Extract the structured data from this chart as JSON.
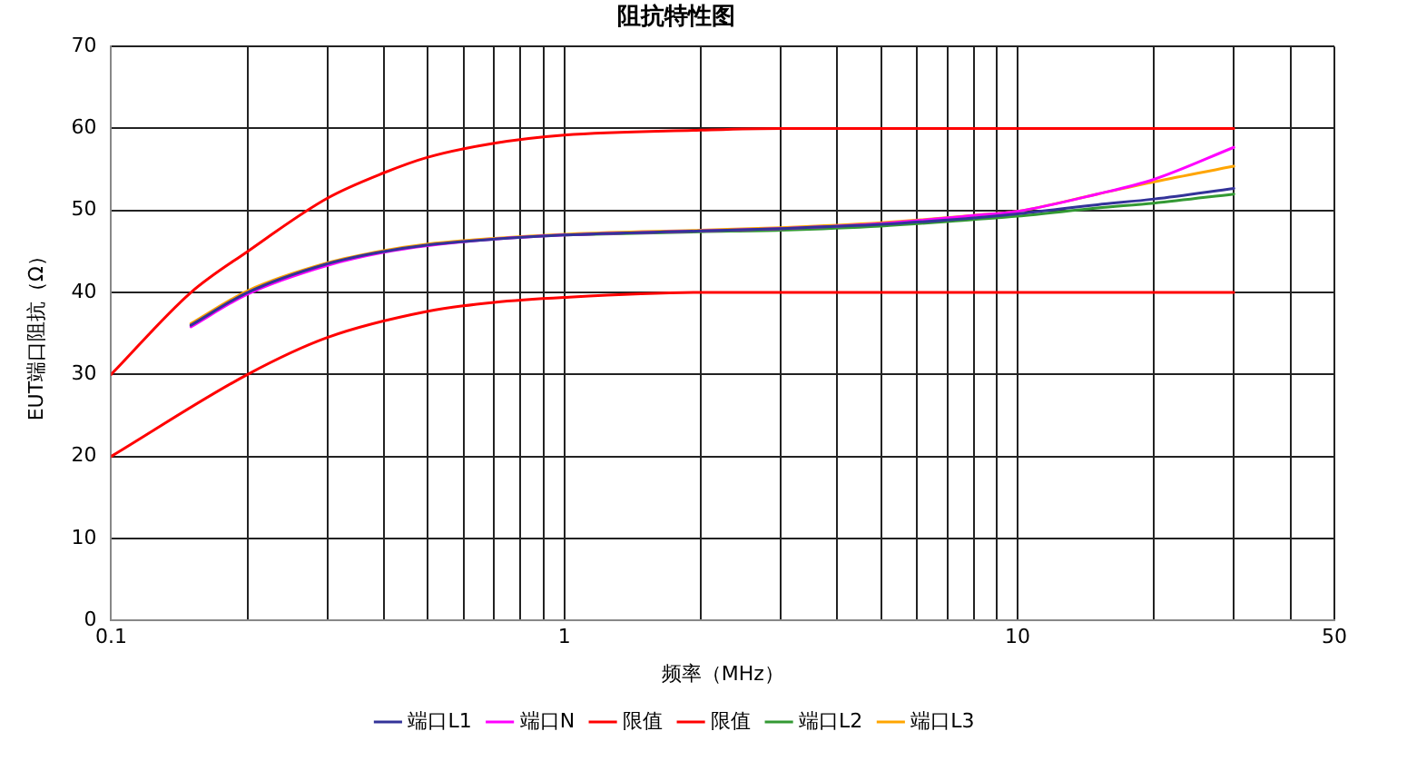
{
  "chart_data": {
    "type": "line",
    "title": "阻抗特性图",
    "xlabel": "频率（MHz）",
    "ylabel": "EUT端口阻抗（Ω）",
    "log": "x",
    "xlim": [
      0.1,
      50
    ],
    "xticks": [
      0.1,
      {
        "value": 0.2,
        "label": null
      },
      {
        "value": 0.3,
        "label": null
      },
      {
        "value": 0.4,
        "label": null
      },
      {
        "value": 0.5,
        "label": null
      },
      {
        "value": 0.6,
        "label": null
      },
      {
        "value": 0.7,
        "label": null
      },
      {
        "value": 0.8,
        "label": null
      },
      {
        "value": 0.9,
        "label": null
      },
      1,
      {
        "value": 2,
        "label": null
      },
      {
        "value": 3,
        "label": null
      },
      {
        "value": 4,
        "label": null
      },
      {
        "value": 5,
        "label": null
      },
      {
        "value": 6,
        "label": null
      },
      {
        "value": 7,
        "label": null
      },
      {
        "value": 8,
        "label": null
      },
      {
        "value": 9,
        "label": null
      },
      10,
      {
        "value": 20,
        "label": null
      },
      {
        "value": 30,
        "label": null
      },
      {
        "value": 40,
        "label": null
      },
      50
    ],
    "ylim": [
      0,
      70
    ],
    "yticks": [
      0,
      10,
      20,
      30,
      40,
      50,
      60,
      70
    ],
    "grid": true,
    "legend": "bottom",
    "marker": "none",
    "line_style": "solid",
    "series": [
      {
        "name": "端口L1",
        "color": "#333399",
        "x": [
          0.15,
          0.2,
          0.3,
          0.4,
          0.5,
          0.7,
          1,
          2,
          3,
          5,
          8,
          10,
          15,
          20,
          30
        ],
        "values": [
          36,
          40,
          43.5,
          45,
          45.8,
          46.5,
          47,
          47.5,
          47.8,
          48.3,
          49.1,
          49.6,
          50.7,
          51.4,
          52.7
        ]
      },
      {
        "name": "端口N",
        "color": "#ff00ff",
        "x": [
          0.15,
          0.2,
          0.3,
          0.4,
          0.5,
          0.7,
          1,
          2,
          3,
          5,
          8,
          10,
          15,
          20,
          30
        ],
        "values": [
          35.8,
          39.8,
          43.3,
          44.9,
          45.7,
          46.5,
          47,
          47.5,
          47.8,
          48.4,
          49.4,
          49.9,
          52,
          53.8,
          57.7
        ]
      },
      {
        "name": "限值",
        "color": "#ff0000",
        "x": [
          0.1,
          0.15,
          0.2,
          0.3,
          0.4,
          0.5,
          0.7,
          1,
          2,
          3,
          30
        ],
        "values": [
          30,
          40,
          45,
          51.5,
          54.6,
          56.5,
          58.2,
          59.2,
          59.8,
          60,
          60
        ]
      },
      {
        "name": "限值",
        "color": "#ff0000",
        "x": [
          0.1,
          0.2,
          0.3,
          0.5,
          0.7,
          1,
          2,
          30
        ],
        "values": [
          20,
          30,
          34.5,
          37.7,
          38.8,
          39.4,
          40,
          40
        ]
      },
      {
        "name": "端口L2",
        "color": "#339933",
        "x": [
          1,
          2,
          3,
          5,
          8,
          10,
          15,
          20,
          30
        ],
        "values": [
          47,
          47.4,
          47.6,
          48.1,
          48.9,
          49.3,
          50.3,
          50.9,
          52
        ]
      },
      {
        "name": "端口L3",
        "color": "#ffa500",
        "x": [
          0.15,
          0.2,
          0.3,
          0.4,
          0.5,
          0.7,
          1,
          2,
          3,
          5,
          8,
          10,
          15,
          20,
          30
        ],
        "values": [
          36.2,
          40.2,
          43.6,
          45.1,
          45.9,
          46.6,
          47.1,
          47.6,
          47.9,
          48.5,
          49.4,
          49.9,
          52,
          53.5,
          55.4
        ]
      }
    ]
  }
}
